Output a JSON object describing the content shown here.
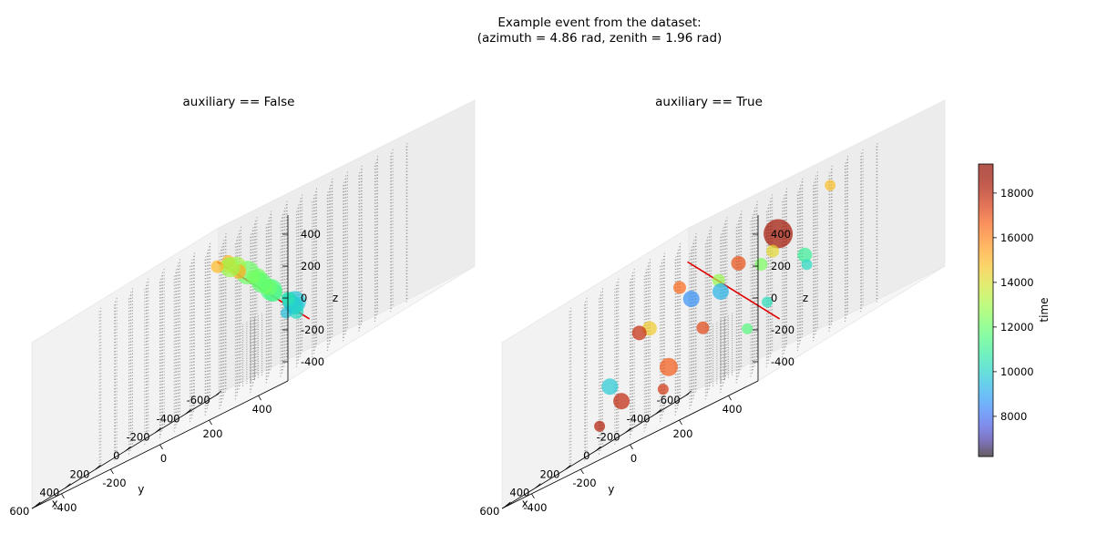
{
  "figure": {
    "suptitle_lines": [
      "Example event from the dataset:",
      "(azimuth = 4.86 rad, zenith = 1.96 rad)"
    ]
  },
  "chart_data": [
    {
      "type": "scatter",
      "title": "auxiliary == False",
      "xlabel": "x",
      "ylabel": "y",
      "zlabel": "z",
      "xlim": [
        -620,
        620
      ],
      "ylim": [
        -520,
        520
      ],
      "zlim": [
        -520,
        520
      ],
      "x_ticks": [
        "-600",
        "-400",
        "-200",
        "0",
        "200",
        "400",
        "600"
      ],
      "y_ticks": [
        "-400",
        "-200",
        "0",
        "200",
        "400"
      ],
      "z_ticks": [
        "-400",
        "-200",
        "0",
        "200",
        "400"
      ],
      "direction_line": {
        "color": "#e00000",
        "from": [
          330,
          430,
          -230
        ],
        "to": [
          -170,
          -250,
          360
        ]
      },
      "points": [
        {
          "x": 270,
          "y": 340,
          "z": -150,
          "time": 10200,
          "size": 8
        },
        {
          "x": 250,
          "y": 320,
          "z": -120,
          "time": 10000,
          "size": 7
        },
        {
          "x": 220,
          "y": 300,
          "z": -110,
          "time": 9800,
          "size": 10
        },
        {
          "x": 230,
          "y": 310,
          "z": -90,
          "time": 9700,
          "size": 12
        },
        {
          "x": 210,
          "y": 280,
          "z": -80,
          "time": 9900,
          "size": 9
        },
        {
          "x": 200,
          "y": 270,
          "z": -60,
          "time": 10100,
          "size": 8
        },
        {
          "x": 180,
          "y": 250,
          "z": -50,
          "time": 10500,
          "size": 7
        },
        {
          "x": 240,
          "y": 280,
          "z": -130,
          "time": 9600,
          "size": 6
        },
        {
          "x": 80,
          "y": 130,
          "z": 20,
          "time": 11200,
          "size": 10
        },
        {
          "x": 60,
          "y": 110,
          "z": 40,
          "time": 11400,
          "size": 12
        },
        {
          "x": 40,
          "y": 90,
          "z": 60,
          "time": 12000,
          "size": 9
        },
        {
          "x": 20,
          "y": 60,
          "z": 80,
          "time": 12300,
          "size": 8
        },
        {
          "x": 10,
          "y": 40,
          "z": 110,
          "time": 11800,
          "size": 11
        },
        {
          "x": 0,
          "y": 20,
          "z": 140,
          "time": 11900,
          "size": 9
        },
        {
          "x": -20,
          "y": 10,
          "z": 160,
          "time": 12200,
          "size": 8
        },
        {
          "x": -30,
          "y": -20,
          "z": 170,
          "time": 12500,
          "size": 7
        },
        {
          "x": -60,
          "y": -60,
          "z": 210,
          "time": 12100,
          "size": 13
        },
        {
          "x": -120,
          "y": -140,
          "z": 280,
          "time": 13000,
          "size": 10
        },
        {
          "x": -150,
          "y": -190,
          "z": 300,
          "time": 14600,
          "size": 8
        },
        {
          "x": -160,
          "y": -200,
          "z": 330,
          "time": 15000,
          "size": 7
        },
        {
          "x": -140,
          "y": -180,
          "z": 290,
          "time": 12800,
          "size": 11
        },
        {
          "x": -100,
          "y": -120,
          "z": 240,
          "time": 15200,
          "size": 8
        },
        {
          "x": -170,
          "y": -250,
          "z": 330,
          "time": 14900,
          "size": 7
        }
      ]
    },
    {
      "type": "scatter",
      "title": "auxiliary == True",
      "xlabel": "x",
      "ylabel": "y",
      "zlabel": "z",
      "xlim": [
        -620,
        620
      ],
      "ylim": [
        -520,
        520
      ],
      "zlim": [
        -520,
        520
      ],
      "x_ticks": [
        "-600",
        "-400",
        "-200",
        "0",
        "200",
        "400",
        "600"
      ],
      "y_ticks": [
        "-400",
        "-200",
        "0",
        "200",
        "400"
      ],
      "z_ticks": [
        "-400",
        "-200",
        "0",
        "200",
        "400"
      ],
      "direction_line": {
        "color": "#e00000",
        "from": [
          330,
          430,
          -230
        ],
        "to": [
          -170,
          -250,
          360
        ]
      },
      "points": [
        {
          "x": -200,
          "y": 100,
          "z": 250,
          "time": 18500,
          "size": 16
        },
        {
          "x": -300,
          "y": 250,
          "z": 380,
          "time": 14800,
          "size": 6
        },
        {
          "x": -100,
          "y": 0,
          "z": 200,
          "time": 17000,
          "size": 8
        },
        {
          "x": 0,
          "y": 200,
          "z": 180,
          "time": 14200,
          "size": 7
        },
        {
          "x": 100,
          "y": 50,
          "z": 100,
          "time": 9300,
          "size": 9
        },
        {
          "x": -120,
          "y": 80,
          "z": 120,
          "time": 12300,
          "size": 7
        },
        {
          "x": 200,
          "y": 300,
          "z": -100,
          "time": 10300,
          "size": 6
        },
        {
          "x": 250,
          "y": 250,
          "z": -200,
          "time": 11600,
          "size": 6
        },
        {
          "x": -50,
          "y": -50,
          "z": 160,
          "time": 12800,
          "size": 7
        },
        {
          "x": 50,
          "y": -100,
          "z": 140,
          "time": 8600,
          "size": 9
        },
        {
          "x": 150,
          "y": -250,
          "z": 100,
          "time": 17800,
          "size": 8
        },
        {
          "x": 300,
          "y": 100,
          "z": -50,
          "time": 17200,
          "size": 7
        },
        {
          "x": 350,
          "y": -200,
          "z": -250,
          "time": 17900,
          "size": 9
        },
        {
          "x": -50,
          "y": 300,
          "z": 50,
          "time": 11000,
          "size": 8
        },
        {
          "x": 100,
          "y": 400,
          "z": 0,
          "time": 10200,
          "size": 6
        },
        {
          "x": 200,
          "y": -100,
          "z": -200,
          "time": 16800,
          "size": 10
        },
        {
          "x": -200,
          "y": -300,
          "z": 220,
          "time": 16500,
          "size": 7
        },
        {
          "x": 0,
          "y": -300,
          "z": 80,
          "time": 14500,
          "size": 8
        },
        {
          "x": 100,
          "y": -400,
          "z": -150,
          "time": 9800,
          "size": 9
        },
        {
          "x": 400,
          "y": 0,
          "z": -300,
          "time": 17500,
          "size": 6
        },
        {
          "x": 250,
          "y": -350,
          "z": -350,
          "time": 18200,
          "size": 6
        }
      ]
    }
  ],
  "colorbar": {
    "label": "time",
    "ticks": [
      "8000",
      "10000",
      "12000",
      "14000",
      "16000",
      "18000"
    ],
    "range": [
      6200,
      19300
    ],
    "colormap": "turbo",
    "alpha": 0.7
  },
  "detector": {
    "string_color": "#9a9a9a"
  }
}
